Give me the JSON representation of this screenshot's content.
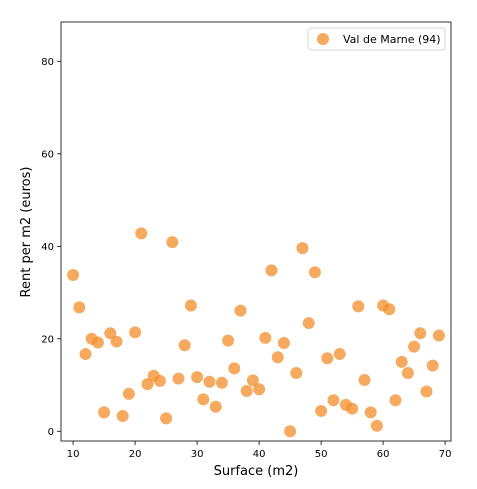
{
  "chart_data": {
    "type": "scatter",
    "title": "",
    "xlabel": "Surface (m2)",
    "ylabel": "Rent per m2 (euros)",
    "xlim": [
      8.05,
      70.95
    ],
    "ylim": [
      -2.1,
      88.5
    ],
    "xticks": [
      10,
      20,
      30,
      40,
      50,
      60,
      70
    ],
    "yticks": [
      0,
      20,
      40,
      60,
      80
    ],
    "grid": false,
    "legend_position": "top-right",
    "series": [
      {
        "name": "Val de Marne (94)",
        "color": "#f28e2b",
        "points": [
          {
            "x": 10,
            "y": 33.8
          },
          {
            "x": 11,
            "y": 26.8
          },
          {
            "x": 12,
            "y": 16.7
          },
          {
            "x": 13,
            "y": 20.0
          },
          {
            "x": 14,
            "y": 19.2
          },
          {
            "x": 15,
            "y": 4.1
          },
          {
            "x": 16,
            "y": 21.2
          },
          {
            "x": 17,
            "y": 19.4
          },
          {
            "x": 18,
            "y": 3.3
          },
          {
            "x": 19,
            "y": 8.1
          },
          {
            "x": 20,
            "y": 21.4
          },
          {
            "x": 21,
            "y": 42.8
          },
          {
            "x": 22,
            "y": 10.2
          },
          {
            "x": 23,
            "y": 12.0
          },
          {
            "x": 24,
            "y": 10.9
          },
          {
            "x": 25,
            "y": 2.8
          },
          {
            "x": 26,
            "y": 40.9
          },
          {
            "x": 27,
            "y": 11.4
          },
          {
            "x": 28,
            "y": 18.6
          },
          {
            "x": 29,
            "y": 27.2
          },
          {
            "x": 30,
            "y": 11.7
          },
          {
            "x": 31,
            "y": 6.9
          },
          {
            "x": 32,
            "y": 10.7
          },
          {
            "x": 33,
            "y": 5.3
          },
          {
            "x": 34,
            "y": 10.5
          },
          {
            "x": 35,
            "y": 19.6
          },
          {
            "x": 36,
            "y": 13.6
          },
          {
            "x": 37,
            "y": 26.1
          },
          {
            "x": 38,
            "y": 8.7
          },
          {
            "x": 39,
            "y": 11.0
          },
          {
            "x": 40,
            "y": 9.1
          },
          {
            "x": 41,
            "y": 20.2
          },
          {
            "x": 42,
            "y": 34.8
          },
          {
            "x": 43,
            "y": 16.0
          },
          {
            "x": 44,
            "y": 19.1
          },
          {
            "x": 45,
            "y": 0.0
          },
          {
            "x": 46,
            "y": 12.6
          },
          {
            "x": 47,
            "y": 39.6
          },
          {
            "x": 48,
            "y": 23.4
          },
          {
            "x": 49,
            "y": 34.4
          },
          {
            "x": 50,
            "y": 4.4
          },
          {
            "x": 51,
            "y": 15.8
          },
          {
            "x": 52,
            "y": 6.7
          },
          {
            "x": 53,
            "y": 16.7
          },
          {
            "x": 54,
            "y": 5.7
          },
          {
            "x": 55,
            "y": 4.9
          },
          {
            "x": 56,
            "y": 27.0
          },
          {
            "x": 57,
            "y": 11.1
          },
          {
            "x": 58,
            "y": 4.1
          },
          {
            "x": 59,
            "y": 1.2
          },
          {
            "x": 60,
            "y": 27.2
          },
          {
            "x": 61,
            "y": 26.4
          },
          {
            "x": 62,
            "y": 6.7
          },
          {
            "x": 63,
            "y": 15.0
          },
          {
            "x": 64,
            "y": 12.6
          },
          {
            "x": 65,
            "y": 18.3
          },
          {
            "x": 66,
            "y": 21.2
          },
          {
            "x": 67,
            "y": 8.6
          },
          {
            "x": 68,
            "y": 14.2
          },
          {
            "x": 69,
            "y": 20.7
          }
        ]
      }
    ]
  }
}
